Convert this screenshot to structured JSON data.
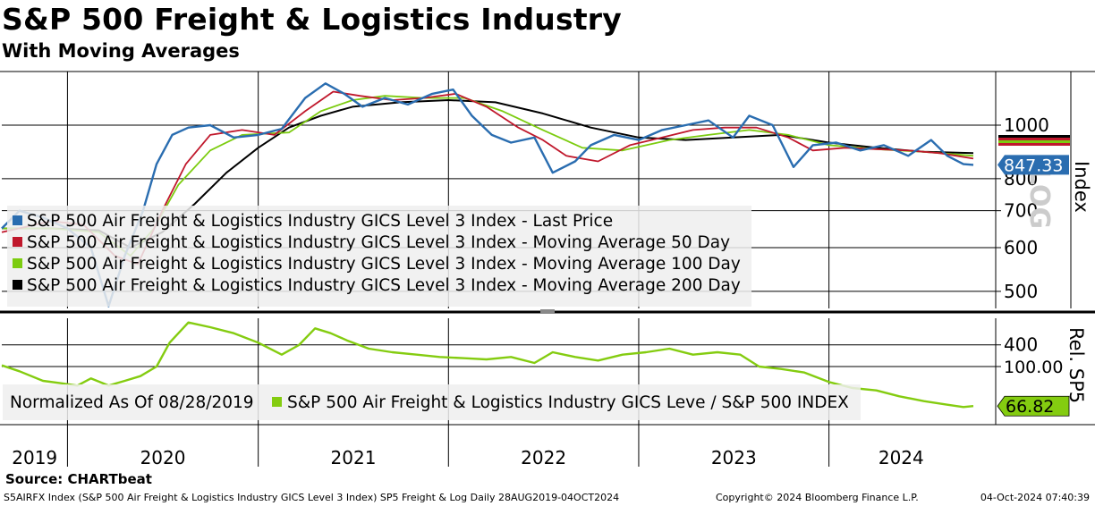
{
  "title": "S&P 500 Freight & Logistics Industry",
  "subtitle": "With Moving Averages",
  "source": "Source: CHARTbeat",
  "footer": {
    "left": "S5AIRFX Index (S&P 500 Air Freight & Logistics Industry GICS Level 3 Index) SP5 Freight & Log  Daily 28AUG2019-04OCT2024",
    "middle": "Copyright© 2024 Bloomberg Finance L.P.",
    "right": "04-Oct-2024 07:40:39"
  },
  "colors": {
    "last_price": "#2a6db0",
    "ma50": "#c0182c",
    "ma100": "#7ccc10",
    "ma200": "#000000",
    "relative": "#84cc10",
    "legend_bg": "#eeeeee"
  },
  "x_axis": {
    "start": "2019-08-28",
    "end": "2024-10-04",
    "year_labels": [
      "2019",
      "2020",
      "2021",
      "2022",
      "2023",
      "2024"
    ]
  },
  "chart_data": [
    {
      "type": "line",
      "scale": "log",
      "ylabel": "Index",
      "yticks": [
        400,
        500,
        600,
        700,
        800,
        1000
      ],
      "ylim": [
        360,
        1200
      ],
      "last_value_label": "847.33",
      "watermark": "LOG",
      "legend": [
        "S&P 500 Air Freight & Logistics Industry GICS Level 3 Index - Last Price",
        "S&P 500 Air Freight & Logistics Industry GICS Level 3 Index - Moving Average 50 Day",
        "S&P 500 Air Freight & Logistics Industry GICS Level 3 Index - Moving Average 100 Day",
        "S&P 500 Air Freight & Logistics Industry GICS Level 3 Index - Moving Average 200 Day"
      ],
      "series": [
        {
          "key": "last_price",
          "x": [
            "2019-08-28",
            "2019-10-01",
            "2019-11-15",
            "2020-01-01",
            "2020-02-15",
            "2020-03-20",
            "2020-04-20",
            "2020-05-25",
            "2020-06-20",
            "2020-07-20",
            "2020-08-20",
            "2020-10-01",
            "2020-11-15",
            "2021-01-01",
            "2021-02-15",
            "2021-04-01",
            "2021-05-10",
            "2021-06-15",
            "2021-07-20",
            "2021-09-01",
            "2021-10-15",
            "2021-12-01",
            "2022-01-10",
            "2022-02-15",
            "2022-03-25",
            "2022-05-01",
            "2022-06-15",
            "2022-07-20",
            "2022-09-01",
            "2022-10-01",
            "2022-11-15",
            "2023-01-01",
            "2023-02-15",
            "2023-04-01",
            "2023-05-15",
            "2023-07-01",
            "2023-08-01",
            "2023-09-15",
            "2023-10-25",
            "2023-12-01",
            "2024-01-15",
            "2024-03-01",
            "2024-04-15",
            "2024-06-01",
            "2024-07-15",
            "2024-08-15",
            "2024-09-15",
            "2024-10-04"
          ],
          "y": [
            650,
            700,
            680,
            650,
            600,
            470,
            580,
            700,
            850,
            960,
            990,
            1000,
            950,
            960,
            985,
            1120,
            1190,
            1140,
            1080,
            1120,
            1090,
            1140,
            1160,
            1040,
            960,
            930,
            950,
            820,
            860,
            920,
            960,
            940,
            980,
            1000,
            1020,
            950,
            1040,
            1000,
            840,
            920,
            930,
            900,
            920,
            880,
            940,
            880,
            850,
            847.33
          ]
        },
        {
          "key": "ma50",
          "x": [
            "2019-08-28",
            "2019-12-01",
            "2020-02-01",
            "2020-04-01",
            "2020-05-15",
            "2020-07-01",
            "2020-08-15",
            "2020-10-01",
            "2020-12-01",
            "2021-02-01",
            "2021-04-01",
            "2021-05-25",
            "2021-07-15",
            "2021-09-15",
            "2021-11-15",
            "2022-01-15",
            "2022-03-15",
            "2022-05-15",
            "2022-07-01",
            "2022-08-15",
            "2022-10-15",
            "2022-12-15",
            "2023-02-15",
            "2023-04-15",
            "2023-06-15",
            "2023-08-15",
            "2023-10-15",
            "2023-12-01",
            "2024-02-01",
            "2024-04-01",
            "2024-06-01",
            "2024-08-01",
            "2024-10-04"
          ],
          "y": [
            640,
            670,
            660,
            580,
            560,
            700,
            850,
            960,
            980,
            960,
            1060,
            1150,
            1130,
            1110,
            1120,
            1140,
            1080,
            990,
            940,
            880,
            860,
            920,
            950,
            980,
            990,
            990,
            950,
            900,
            910,
            905,
            900,
            890,
            870
          ]
        },
        {
          "key": "ma100",
          "x": [
            "2019-08-28",
            "2019-12-01",
            "2020-03-01",
            "2020-05-01",
            "2020-06-15",
            "2020-08-01",
            "2020-10-01",
            "2020-12-01",
            "2021-03-01",
            "2021-05-01",
            "2021-07-01",
            "2021-09-01",
            "2021-11-15",
            "2022-02-01",
            "2022-04-15",
            "2022-07-01",
            "2022-09-15",
            "2022-12-01",
            "2023-03-01",
            "2023-05-15",
            "2023-08-01",
            "2023-10-15",
            "2024-01-01",
            "2024-04-01",
            "2024-07-01",
            "2024-10-04"
          ],
          "y": [
            650,
            650,
            640,
            580,
            650,
            780,
            900,
            960,
            970,
            1060,
            1110,
            1130,
            1120,
            1120,
            1060,
            980,
            910,
            900,
            940,
            960,
            980,
            960,
            920,
            905,
            895,
            880
          ]
        },
        {
          "key": "ma200",
          "x": [
            "2019-08-28",
            "2019-12-01",
            "2020-03-01",
            "2020-05-01",
            "2020-07-01",
            "2020-09-01",
            "2020-11-01",
            "2021-01-01",
            "2021-03-01",
            "2021-05-01",
            "2021-07-01",
            "2021-10-01",
            "2022-01-01",
            "2022-04-01",
            "2022-07-01",
            "2022-10-01",
            "2023-01-01",
            "2023-04-01",
            "2023-07-01",
            "2023-10-01",
            "2024-01-01",
            "2024-04-01",
            "2024-07-01",
            "2024-10-04"
          ],
          "y": [
            650,
            650,
            645,
            600,
            640,
            720,
            820,
            910,
            990,
            1040,
            1080,
            1100,
            1110,
            1100,
            1050,
            990,
            950,
            940,
            950,
            960,
            930,
            910,
            895,
            890
          ]
        }
      ]
    },
    {
      "type": "line",
      "ylabel": "Rel. SP5",
      "yticks": [
        100
      ],
      "ytick_labels": [
        "100.00"
      ],
      "ylim": [
        55,
        145
      ],
      "last_value_label": "66.82",
      "legend_prefix": "Normalized As Of 08/28/2019",
      "legend": [
        "S&P 500 Air Freight & Logistics Industry GICS Leve / S&P 500 INDEX"
      ],
      "series": [
        {
          "key": "relative",
          "x": [
            "2019-08-28",
            "2019-10-01",
            "2019-11-15",
            "2019-12-20",
            "2020-01-20",
            "2020-02-15",
            "2020-03-20",
            "2020-04-20",
            "2020-05-20",
            "2020-06-20",
            "2020-07-15",
            "2020-08-20",
            "2020-10-01",
            "2020-11-15",
            "2021-01-01",
            "2021-02-15",
            "2021-03-20",
            "2021-04-20",
            "2021-05-20",
            "2021-06-20",
            "2021-08-01",
            "2021-09-15",
            "2021-11-01",
            "2021-12-15",
            "2022-02-01",
            "2022-03-15",
            "2022-05-01",
            "2022-06-15",
            "2022-07-20",
            "2022-09-01",
            "2022-10-15",
            "2022-12-01",
            "2023-01-15",
            "2023-03-01",
            "2023-04-15",
            "2023-06-01",
            "2023-07-15",
            "2023-08-20",
            "2023-10-01",
            "2023-11-15",
            "2024-01-01",
            "2024-02-15",
            "2024-04-01",
            "2024-05-15",
            "2024-07-01",
            "2024-08-15",
            "2024-09-15",
            "2024-10-04"
          ],
          "y": [
            101,
            96,
            88,
            86,
            84,
            90,
            84,
            88,
            92,
            100,
            120,
            137,
            133,
            128,
            120,
            110,
            118,
            132,
            128,
            122,
            115,
            112,
            110,
            108,
            107,
            106,
            108,
            103,
            112,
            108,
            105,
            110,
            112,
            115,
            110,
            112,
            110,
            100,
            98,
            95,
            87,
            82,
            80,
            75,
            71,
            68,
            66,
            66.82
          ]
        }
      ]
    }
  ]
}
